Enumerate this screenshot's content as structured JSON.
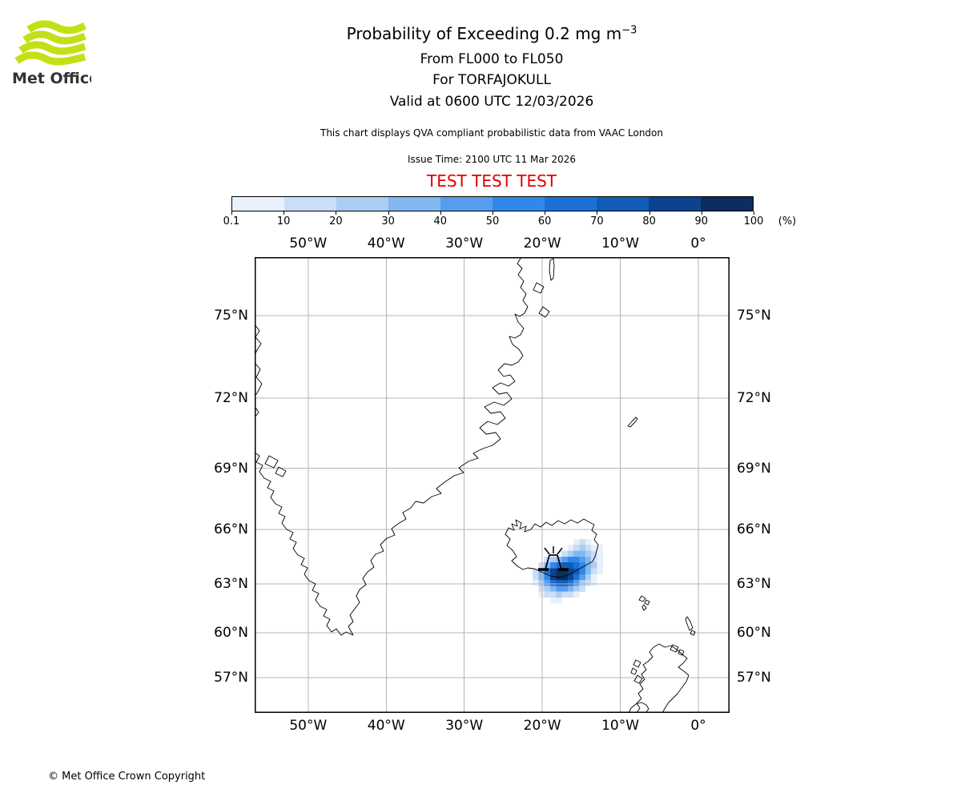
{
  "logo": {
    "text": "Met Office",
    "green": "#c3e015",
    "text_color": "#333333"
  },
  "header": {
    "title_main": "Probability of Exceeding 0.2 mg m",
    "title_exponent": "−3",
    "line_flight_levels": "From FL000 to FL050",
    "line_volcano": "For TORFAJOKULL",
    "line_valid": "Valid at 0600 UTC 12/03/2026",
    "description": "This chart displays QVA compliant probabilistic data from VAAC London",
    "issue_time": "Issue Time: 2100 UTC 11 Mar 2026",
    "test_banner": "TEST TEST TEST",
    "test_color": "#e00000"
  },
  "colorbar": {
    "tick_labels": [
      "0.1",
      "10",
      "20",
      "30",
      "40",
      "50",
      "60",
      "70",
      "80",
      "90",
      "100"
    ],
    "unit": "(%)",
    "segment_colors": [
      "#e7f0fb",
      "#cbdef7",
      "#a9cdf3",
      "#82b7f0",
      "#569ded",
      "#3089ea",
      "#1c70d8",
      "#105cb8",
      "#0b4391",
      "#0c2e5e"
    ]
  },
  "map": {
    "lon_labels": [
      "50°W",
      "40°W",
      "30°W",
      "20°W",
      "10°W",
      "0°"
    ],
    "lat_labels": [
      "75°N",
      "72°N",
      "69°N",
      "66°N",
      "63°N",
      "60°N",
      "57°N"
    ],
    "gridline_color": "#b5b5b5"
  },
  "footer": {
    "copyright": "© Met Office Crown Copyright"
  },
  "chart_data": {
    "type": "heatmap",
    "title": "Probability of Exceeding 0.2 mg m−3",
    "subtitle": [
      "From FL000 to FL050",
      "For TORFAJOKULL",
      "Valid at 0600 UTC 12/03/2026"
    ],
    "projection": "mercator",
    "lon_ticks_deg": [
      -50,
      -40,
      -30,
      -20,
      -10,
      0
    ],
    "lat_ticks_deg": [
      75,
      72,
      69,
      66,
      63,
      60,
      57
    ],
    "colorbar_bounds_pct": [
      0.1,
      10,
      20,
      30,
      40,
      50,
      60,
      70,
      80,
      90,
      100
    ],
    "volcano": {
      "name": "TORFAJOKULL",
      "marker_lon_deg": -19.0,
      "marker_lat_deg": 63.9
    },
    "probability_grid": {
      "comment": "Ash-exceedance probability field SE of Iceland; rows north to south; value = colorbar bin index 1-10 (0 = below 0.1%)",
      "origin_lon_deg": -22.0,
      "origin_lat_deg": 65.5,
      "cell_deg_lon": 0.75,
      "values": [
        [
          0,
          0,
          0,
          0,
          0,
          0,
          0,
          0,
          1,
          2,
          1,
          0,
          0,
          0
        ],
        [
          0,
          0,
          0,
          0,
          0,
          0,
          0,
          1,
          2,
          3,
          2,
          1,
          1,
          0
        ],
        [
          0,
          0,
          0,
          0,
          0,
          1,
          2,
          3,
          4,
          4,
          3,
          2,
          1,
          0
        ],
        [
          0,
          0,
          0,
          2,
          3,
          4,
          5,
          6,
          6,
          5,
          4,
          2,
          1,
          0
        ],
        [
          0,
          0,
          2,
          4,
          6,
          7,
          8,
          8,
          7,
          6,
          4,
          3,
          1,
          0
        ],
        [
          0,
          2,
          4,
          7,
          9,
          10,
          10,
          9,
          8,
          6,
          4,
          2,
          1,
          0
        ],
        [
          0,
          2,
          4,
          6,
          9,
          10,
          10,
          9,
          7,
          5,
          3,
          1,
          0,
          0
        ],
        [
          0,
          1,
          3,
          5,
          7,
          8,
          8,
          7,
          5,
          3,
          2,
          1,
          0,
          0
        ],
        [
          0,
          0,
          2,
          3,
          4,
          5,
          5,
          4,
          3,
          2,
          0,
          0,
          0,
          0
        ],
        [
          0,
          0,
          1,
          2,
          2,
          3,
          2,
          2,
          1,
          0,
          0,
          0,
          0,
          0
        ],
        [
          0,
          0,
          0,
          0,
          1,
          1,
          0,
          0,
          0,
          0,
          0,
          0,
          0,
          0
        ]
      ]
    }
  }
}
